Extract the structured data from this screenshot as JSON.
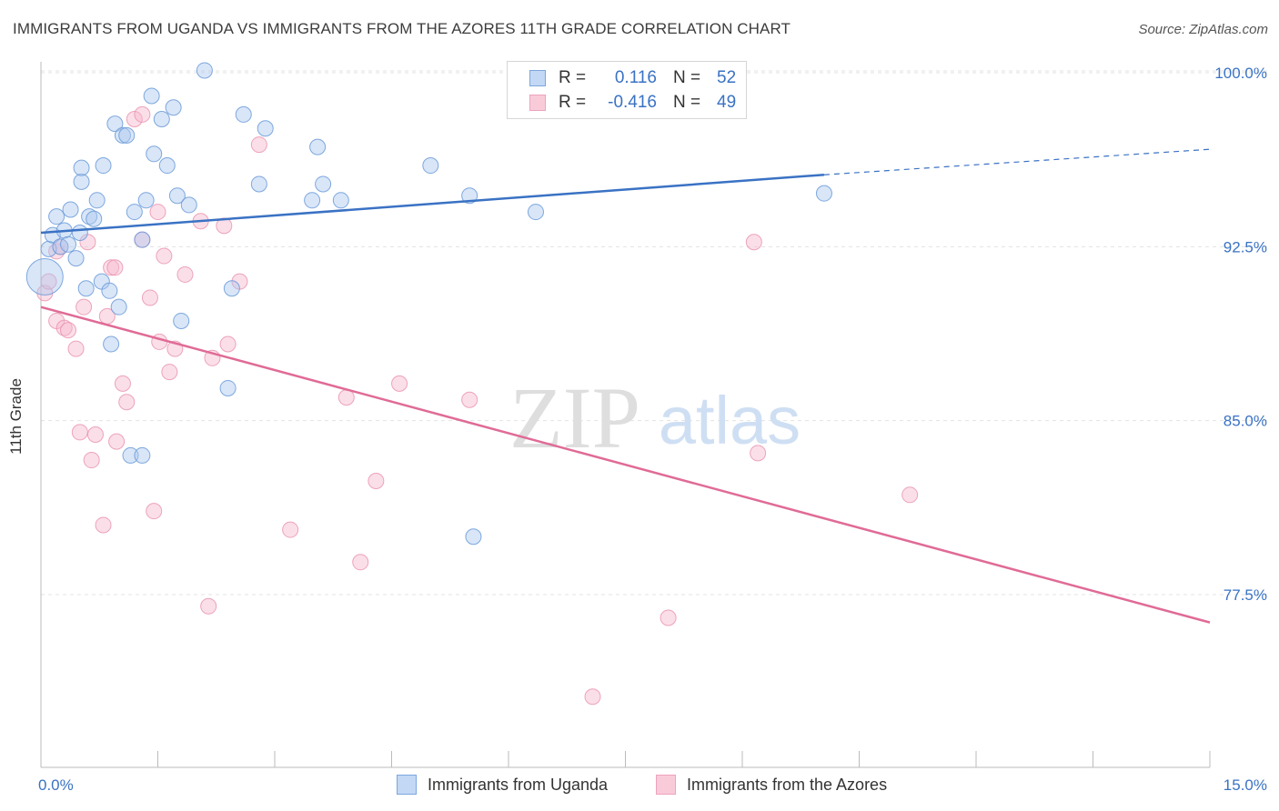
{
  "title": "IMMIGRANTS FROM UGANDA VS IMMIGRANTS FROM THE AZORES 11TH GRADE CORRELATION CHART",
  "source": "Source: ZipAtlas.com",
  "watermark": {
    "zip": "ZIP",
    "atlas": "atlas"
  },
  "legend": {
    "rows": [
      {
        "r_label": "R =",
        "r_value": "0.116",
        "n_label": "N =",
        "n_value": "52"
      },
      {
        "r_label": "R =",
        "r_value": "-0.416",
        "n_label": "N =",
        "n_value": "49"
      }
    ]
  },
  "bottom_legend": {
    "uganda": "Immigrants from Uganda",
    "azores": "Immigrants from the Azores"
  },
  "colors": {
    "uganda_fill": "#aac8f0",
    "uganda_stroke": "#6a9ad8",
    "uganda_line": "#3a72c4",
    "azores_fill": "#f6b8cb",
    "azores_stroke": "#e890ad",
    "azores_line": "#e06b96",
    "tick_label": "#3a72c4",
    "grid": "#e3e3e3"
  },
  "chart_data": {
    "type": "scatter",
    "title": "IMMIGRANTS FROM UGANDA VS IMMIGRANTS FROM THE AZORES 11TH GRADE CORRELATION CHART",
    "xlabel": "",
    "ylabel": "11th Grade",
    "xlim": [
      0,
      15
    ],
    "ylim": [
      70.5,
      101.5
    ],
    "x_tick_labels": [
      {
        "value": 0,
        "label": "0.0%"
      },
      {
        "value": 15,
        "label": "15.0%"
      }
    ],
    "y_tick_labels": [
      {
        "value": 77.5,
        "label": "77.5%"
      },
      {
        "value": 85.0,
        "label": "85.0%"
      },
      {
        "value": 92.5,
        "label": "92.5%"
      },
      {
        "value": 100.0,
        "label": "100.0%"
      }
    ],
    "grid": true,
    "legend_position": "top-center",
    "series": [
      {
        "name": "Immigrants from Uganda",
        "color": "#aac8f0",
        "trend": {
          "x": [
            0,
            10.05
          ],
          "y": [
            93.1,
            95.6
          ],
          "dashed_extension": {
            "x": [
              10.05,
              15
            ],
            "y": [
              95.6,
              96.7
            ]
          }
        },
        "points": [
          [
            0.05,
            91.2
          ],
          [
            0.1,
            92.4
          ],
          [
            0.15,
            93.0
          ],
          [
            0.2,
            93.8
          ],
          [
            0.25,
            92.5
          ],
          [
            0.3,
            93.2
          ],
          [
            0.35,
            92.6
          ],
          [
            0.38,
            94.1
          ],
          [
            0.45,
            92.0
          ],
          [
            0.5,
            93.1
          ],
          [
            0.52,
            95.3
          ],
          [
            0.52,
            95.9
          ],
          [
            0.58,
            90.7
          ],
          [
            0.62,
            93.8
          ],
          [
            0.68,
            93.7
          ],
          [
            0.72,
            94.5
          ],
          [
            0.78,
            91.0
          ],
          [
            0.8,
            96.0
          ],
          [
            0.88,
            90.6
          ],
          [
            0.9,
            88.3
          ],
          [
            0.95,
            97.8
          ],
          [
            1.0,
            89.9
          ],
          [
            1.05,
            97.3
          ],
          [
            1.1,
            97.3
          ],
          [
            1.15,
            83.5
          ],
          [
            1.2,
            94.0
          ],
          [
            1.3,
            92.8
          ],
          [
            1.3,
            83.5
          ],
          [
            1.35,
            94.5
          ],
          [
            1.42,
            99.0
          ],
          [
            1.45,
            96.5
          ],
          [
            1.55,
            98.0
          ],
          [
            1.62,
            96.0
          ],
          [
            1.7,
            98.5
          ],
          [
            1.75,
            94.7
          ],
          [
            1.8,
            89.3
          ],
          [
            1.9,
            94.3
          ],
          [
            2.1,
            100.1
          ],
          [
            2.4,
            86.4
          ],
          [
            2.45,
            90.7
          ],
          [
            2.6,
            98.2
          ],
          [
            2.8,
            95.2
          ],
          [
            2.88,
            97.6
          ],
          [
            3.48,
            94.5
          ],
          [
            3.55,
            96.8
          ],
          [
            3.62,
            95.2
          ],
          [
            3.85,
            94.5
          ],
          [
            5.0,
            96.0
          ],
          [
            5.5,
            94.7
          ],
          [
            5.55,
            80.0
          ],
          [
            6.35,
            94.0
          ],
          [
            10.05,
            94.8
          ]
        ]
      },
      {
        "name": "Immigrants from the Azores",
        "color": "#f6b8cb",
        "trend": {
          "x": [
            0,
            15
          ],
          "y": [
            89.9,
            76.3
          ]
        },
        "points": [
          [
            0.05,
            90.5
          ],
          [
            0.1,
            91.0
          ],
          [
            0.2,
            92.3
          ],
          [
            0.2,
            89.3
          ],
          [
            0.25,
            92.5
          ],
          [
            0.3,
            89.0
          ],
          [
            0.35,
            88.9
          ],
          [
            0.45,
            88.1
          ],
          [
            0.5,
            84.5
          ],
          [
            0.55,
            89.9
          ],
          [
            0.6,
            92.7
          ],
          [
            0.65,
            83.3
          ],
          [
            0.7,
            84.4
          ],
          [
            0.8,
            80.5
          ],
          [
            0.85,
            89.5
          ],
          [
            0.9,
            91.6
          ],
          [
            0.95,
            91.6
          ],
          [
            0.97,
            84.1
          ],
          [
            1.05,
            86.6
          ],
          [
            1.1,
            85.8
          ],
          [
            1.2,
            98.0
          ],
          [
            1.3,
            98.2
          ],
          [
            1.3,
            92.8
          ],
          [
            1.4,
            90.3
          ],
          [
            1.45,
            81.1
          ],
          [
            1.5,
            94.0
          ],
          [
            1.52,
            88.4
          ],
          [
            1.58,
            92.1
          ],
          [
            1.65,
            87.1
          ],
          [
            1.72,
            88.1
          ],
          [
            1.85,
            91.3
          ],
          [
            2.05,
            93.6
          ],
          [
            2.15,
            77.0
          ],
          [
            2.2,
            87.7
          ],
          [
            2.35,
            93.4
          ],
          [
            2.4,
            88.3
          ],
          [
            2.55,
            91.0
          ],
          [
            2.8,
            96.9
          ],
          [
            3.2,
            80.3
          ],
          [
            3.92,
            86.0
          ],
          [
            4.1,
            78.9
          ],
          [
            4.3,
            82.4
          ],
          [
            4.6,
            86.6
          ],
          [
            5.5,
            85.9
          ],
          [
            7.08,
            73.1
          ],
          [
            8.05,
            76.5
          ],
          [
            9.15,
            92.7
          ],
          [
            9.2,
            83.6
          ],
          [
            11.15,
            81.8
          ]
        ]
      }
    ]
  }
}
